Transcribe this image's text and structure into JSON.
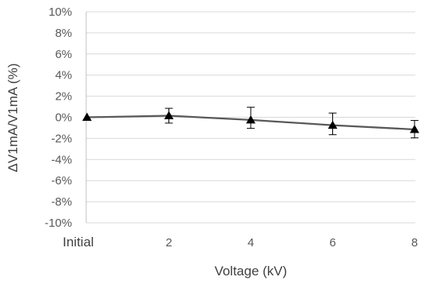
{
  "chart_data": {
    "type": "line",
    "title": "",
    "xlabel": "Voltage (kV)",
    "ylabel": "ΔV1mA/V1mA (%)",
    "categories": [
      "Initial",
      "2",
      "4",
      "6",
      "8"
    ],
    "series": [
      {
        "values": [
          0.0,
          0.15,
          -0.25,
          -0.75,
          -1.15
        ],
        "error_minus": [
          0.0,
          0.7,
          0.8,
          0.9,
          0.8
        ],
        "error_plus": [
          0.0,
          0.7,
          1.2,
          1.15,
          0.85
        ],
        "marker": "triangle",
        "color": "#000000"
      }
    ],
    "ylim": [
      -10,
      10
    ],
    "yticks": [
      10,
      8,
      6,
      4,
      2,
      0,
      -2,
      -4,
      -6,
      -8,
      -10
    ],
    "ytick_labels": [
      "10%",
      "8%",
      "6%",
      "4%",
      "2%",
      "0%",
      "-2%",
      "-4%",
      "-6%",
      "-8%",
      "-10%"
    ],
    "grid": "horizontal",
    "legend": "none"
  },
  "colors": {
    "grid": "#d9d9d9",
    "axis": "#bfbfbf",
    "series": "#000000",
    "line": "#595959",
    "text": "#595959"
  }
}
